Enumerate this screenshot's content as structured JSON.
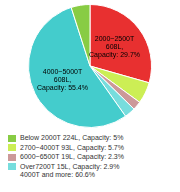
{
  "chart_data": {
    "type": "pie",
    "values": [
      29.7,
      5.7,
      2.3,
      2.9,
      55.4,
      5.0
    ],
    "colors": [
      "#e83030",
      "#ccee55",
      "#cc9999",
      "#77dddd",
      "#44cccc",
      "#88cc44"
    ],
    "value_labels": [
      "2000~2500T\n608L,\nCapacity: 29.7%",
      null,
      null,
      null,
      "4000~5000T\n608L,\nCapacity: 55.4%",
      null
    ],
    "legend": "lower left",
    "legend_entries": [
      {
        "text": "Below 2000T 224L, Capacity: 5%",
        "color": "#88cc44"
      },
      {
        "text": "2700~4000T 93L, Capacity: 5.7%",
        "color": "#ccee55"
      },
      {
        "text": "6000~6500T 19L, Capacity: 2.3%",
        "color": "#cc9999"
      },
      {
        "text": "Over7200T 15L, Capacity: 2.9%\n4000T and more: 60.6%",
        "color": "#77dddd"
      }
    ]
  }
}
